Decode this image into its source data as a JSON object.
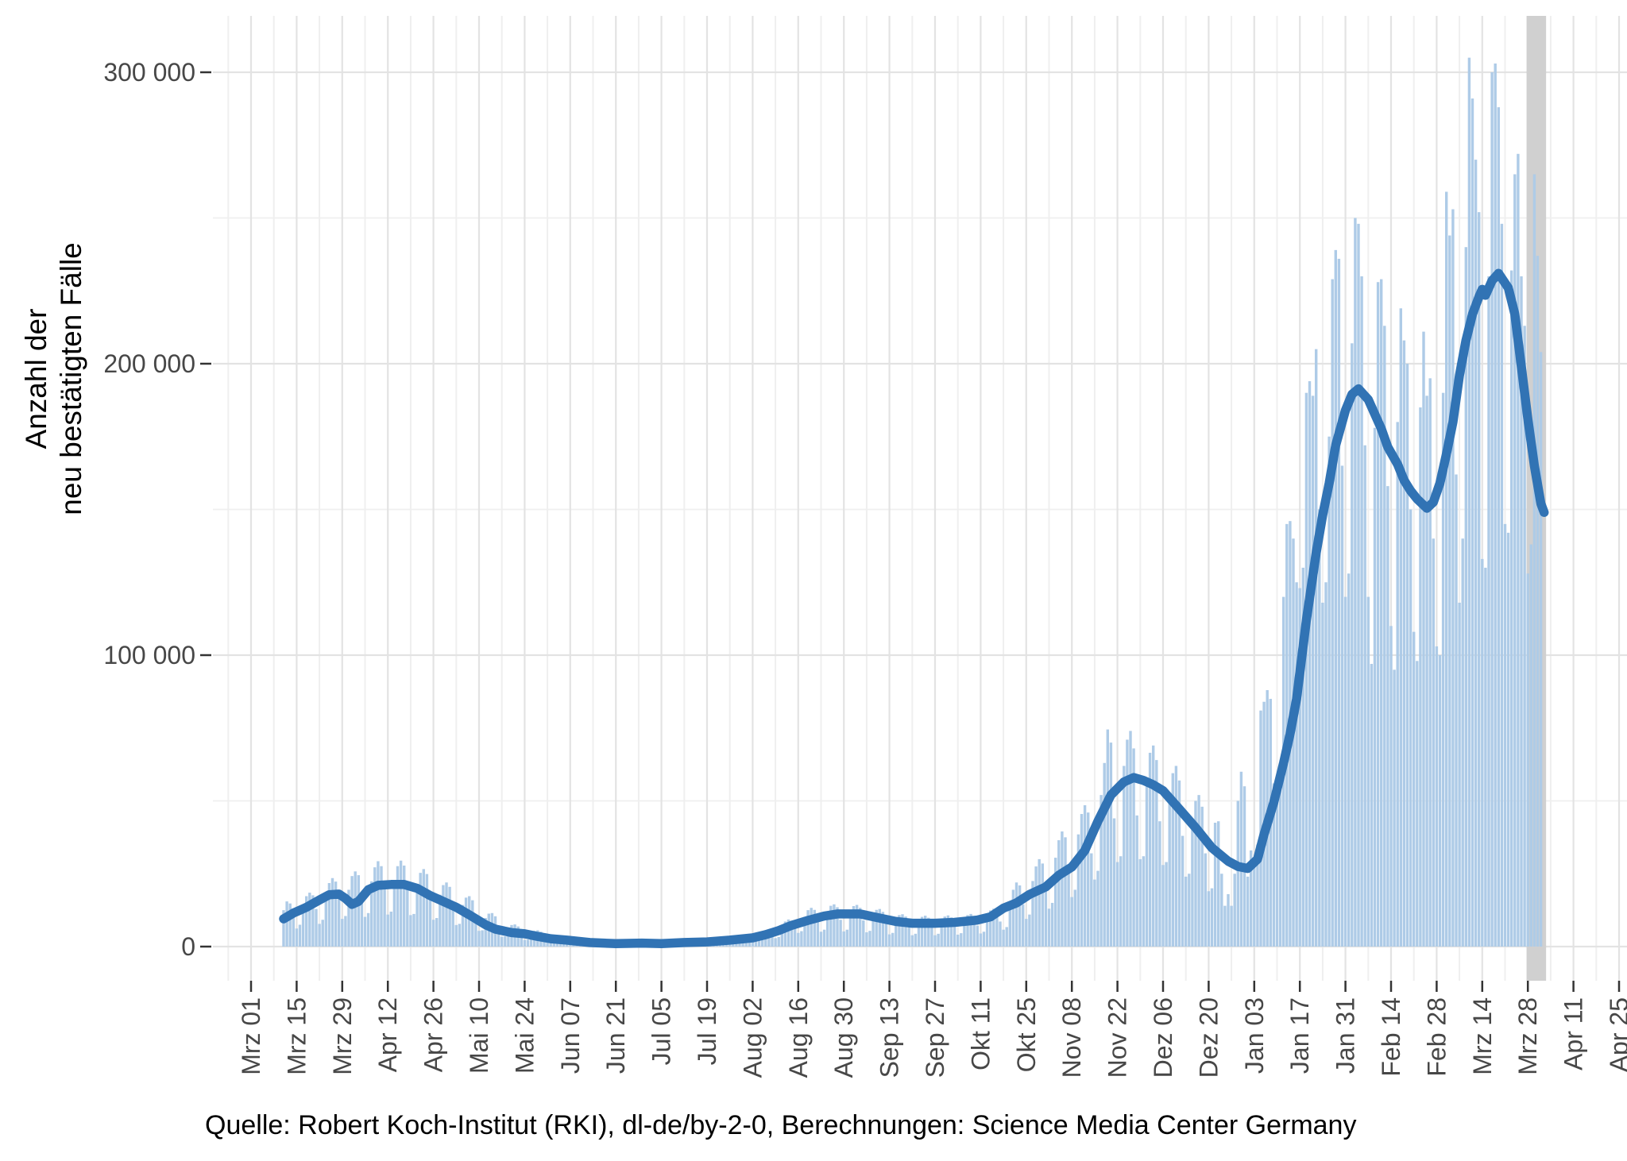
{
  "chart": {
    "y_axis_title_line1": "Anzahl der",
    "y_axis_title_line2": "neu bestätigten Fälle",
    "caption": "Quelle: Robert Koch-Institut (RKI), dl-de/by-2-0, Berechnungen: Science Media Center Germany",
    "y_tick_labels": [
      "0",
      "100 000",
      "200 000",
      "300 000"
    ],
    "x_tick_labels": [
      "Mrz 01",
      "Mrz 15",
      "Mrz 29",
      "Apr 12",
      "Apr 26",
      "Mai 10",
      "Mai 24",
      "Jun 07",
      "Jun 21",
      "Jul 05",
      "Jul 19",
      "Aug 02",
      "Aug 16",
      "Aug 30",
      "Sep 13",
      "Sep 27",
      "Okt 11",
      "Okt 25",
      "Nov 08",
      "Nov 22",
      "Dez 06",
      "Dez 20",
      "Jan 03",
      "Jan 17",
      "Jan 31",
      "Feb 14",
      "Feb 28",
      "Mrz 14",
      "Mrz 28",
      "Apr 11",
      "Apr 25"
    ]
  },
  "chart_data": {
    "type": "bar",
    "title": "",
    "xlabel": "",
    "ylabel": "Anzahl der neu bestätigten Fälle",
    "caption": "Quelle: Robert Koch-Institut (RKI), dl-de/by-2-0, Berechnungen: Science Media Center Germany",
    "x_unit": "days since 2020-03-01 (tick labels every 14 days, Mrz 01 2020 bis Apr 25 2021)",
    "ylim": [
      0,
      319000
    ],
    "grid": "major 100000 / minor 50000, vertical weekly",
    "legend": "none",
    "y_major_tick_values": [
      0,
      100000,
      200000,
      300000
    ],
    "y_minor_gridline_values": [
      50000,
      150000,
      250000
    ],
    "x_major_tick_step_days": 14,
    "x_minor_gridline_offset_days": 7,
    "x_axis_total_days": 420,
    "series": [
      {
        "name": "daily newly confirmed cases (bars)",
        "start_day": 10,
        "unit": "thousands of cases",
        "values_thousands": [
          12.5,
          15.5,
          14.8,
          10.8,
          6.2,
          7.5,
          14.2,
          17.3,
          18.5,
          17.6,
          12.9,
          7.8,
          9.2,
          17.9,
          21.8,
          23.5,
          22.3,
          16.4,
          9.5,
          10.5,
          19.5,
          24.2,
          25.8,
          24.5,
          17.8,
          10.2,
          11.5,
          22.4,
          27.2,
          29.3,
          27.6,
          19.6,
          11.0,
          12.0,
          22.8,
          27.6,
          29.5,
          27.8,
          19.8,
          10.8,
          11.2,
          21.0,
          25.3,
          26.6,
          24.9,
          17.3,
          9.2,
          9.8,
          17.8,
          21.1,
          22.0,
          20.5,
          14.0,
          7.4,
          7.8,
          14.3,
          16.8,
          17.3,
          15.9,
          10.6,
          5.4,
          5.6,
          9.8,
          11.3,
          11.5,
          10.4,
          6.8,
          3.4,
          3.5,
          6.4,
          7.4,
          7.6,
          6.9,
          4.5,
          2.3,
          2.4,
          4.6,
          5.4,
          5.6,
          5.1,
          3.3,
          1.6,
          1.7,
          3.2,
          3.8,
          3.9,
          3.5,
          2.3,
          1.2,
          1.2,
          2.3,
          2.7,
          2.8,
          2.5,
          1.6,
          0.8,
          0.8,
          1.5,
          1.8,
          1.9,
          1.7,
          1.1,
          0.6,
          0.6,
          1.1,
          1.3,
          1.4,
          1.3,
          0.9,
          0.6,
          0.7,
          1.3,
          1.6,
          1.7,
          1.6,
          1.1,
          0.5,
          0.6,
          1.1,
          1.4,
          1.5,
          1.4,
          0.9,
          0.7,
          0.8,
          1.6,
          1.9,
          2.0,
          1.9,
          1.3,
          0.8,
          0.9,
          1.8,
          2.2,
          2.3,
          2.1,
          1.4,
          1.1,
          1.3,
          2.6,
          3.2,
          3.4,
          3.2,
          2.2,
          1.6,
          1.9,
          3.9,
          4.9,
          5.3,
          5.0,
          3.5,
          2.9,
          3.3,
          6.9,
          8.6,
          9.3,
          8.9,
          6.3,
          4.7,
          5.3,
          10.2,
          12.5,
          13.3,
          12.6,
          8.8,
          5.1,
          5.8,
          11.8,
          14.0,
          14.5,
          13.5,
          9.2,
          5.2,
          5.8,
          11.9,
          13.9,
          14.3,
          13.3,
          9.0,
          4.9,
          5.4,
          10.8,
          12.6,
          12.9,
          11.9,
          8.0,
          4.2,
          4.7,
          9.3,
          10.8,
          11.1,
          10.3,
          7.0,
          3.9,
          4.4,
          8.7,
          10.2,
          10.6,
          9.9,
          6.7,
          3.9,
          4.4,
          8.8,
          10.3,
          10.7,
          10.0,
          6.8,
          4.1,
          4.6,
          9.2,
          10.8,
          11.2,
          10.5,
          7.2,
          4.5,
          5.1,
          10.4,
          12.4,
          13.0,
          12.4,
          8.6,
          5.8,
          6.7,
          15.5,
          19.5,
          22.0,
          21.0,
          14.5,
          9.5,
          11.0,
          22.5,
          27.5,
          30.0,
          28.5,
          20.0,
          13.0,
          15.0,
          30.5,
          36.5,
          39.5,
          37.5,
          26.0,
          17.0,
          19.5,
          38.5,
          45.5,
          48.5,
          46.0,
          32.0,
          23.0,
          26.0,
          52.0,
          63.0,
          74.5,
          70.0,
          44.0,
          29.0,
          31.0,
          62.0,
          71.0,
          74.0,
          68.0,
          45.0,
          30.0,
          31.0,
          58.0,
          66.5,
          69.0,
          64.0,
          43.0,
          28.0,
          29.0,
          52.0,
          59.5,
          62.0,
          57.0,
          38.0,
          24.0,
          25.0,
          44.0,
          50.0,
          52.0,
          48.0,
          32.0,
          19.0,
          20.0,
          42.5,
          43.0,
          25.0,
          14.0,
          18.0,
          14.0,
          25.0,
          50.0,
          60.0,
          55.0,
          24.0,
          33.0,
          28.0,
          35.0,
          81.0,
          84.0,
          88.0,
          85.0,
          56.0,
          55.0,
          62.0,
          120,
          145,
          146,
          140,
          125,
          123,
          130,
          190,
          194,
          189,
          205,
          150,
          118,
          125,
          175,
          229,
          239,
          236,
          165,
          120,
          128,
          207,
          250,
          248,
          230,
          172,
          120,
          97,
          178,
          228,
          229,
          213,
          158,
          110,
          95,
          180,
          219,
          208,
          200,
          150,
          108,
          98,
          185,
          211,
          189,
          195,
          140,
          103,
          100,
          190,
          259,
          244,
          253,
          162,
          118,
          140,
          240,
          305,
          291,
          270,
          252,
          133,
          130,
          230,
          300,
          303,
          288,
          248,
          145,
          142,
          232,
          265,
          272,
          230,
          213,
          128,
          138,
          265,
          237,
          204
        ]
      },
      {
        "name": "smoothed trend line (7-day mean)",
        "unit": "thousands of cases",
        "points_day_value_thousands": [
          [
            10,
            9.5
          ],
          [
            13,
            11.5
          ],
          [
            17,
            13.5
          ],
          [
            21,
            16
          ],
          [
            24,
            17.8
          ],
          [
            27,
            18
          ],
          [
            29,
            16.5
          ],
          [
            31,
            14.5
          ],
          [
            33,
            15.5
          ],
          [
            36,
            19.5
          ],
          [
            39,
            21
          ],
          [
            43,
            21.3
          ],
          [
            47,
            21.3
          ],
          [
            51,
            20
          ],
          [
            55,
            17.5
          ],
          [
            58,
            16
          ],
          [
            63,
            13.5
          ],
          [
            67,
            10.9
          ],
          [
            72,
            7.5
          ],
          [
            75,
            6
          ],
          [
            80,
            4.8
          ],
          [
            84,
            4.4
          ],
          [
            88,
            3.5
          ],
          [
            92,
            2.7
          ],
          [
            97,
            2.2
          ],
          [
            104,
            1.4
          ],
          [
            112,
            1.0
          ],
          [
            120,
            1.2
          ],
          [
            126,
            1.0
          ],
          [
            133,
            1.4
          ],
          [
            140,
            1.6
          ],
          [
            147,
            2.2
          ],
          [
            154,
            3.0
          ],
          [
            158,
            4.1
          ],
          [
            162,
            5.5
          ],
          [
            166,
            7.3
          ],
          [
            171,
            9.0
          ],
          [
            176,
            10.5
          ],
          [
            180,
            11.2
          ],
          [
            187,
            11.2
          ],
          [
            192,
            10.0
          ],
          [
            198,
            8.6
          ],
          [
            203,
            8.0
          ],
          [
            210,
            8.0
          ],
          [
            216,
            8.3
          ],
          [
            223,
            9.1
          ],
          [
            227,
            10.2
          ],
          [
            231,
            13.2
          ],
          [
            235,
            15.0
          ],
          [
            239,
            17.9
          ],
          [
            244,
            20.5
          ],
          [
            248,
            24.5
          ],
          [
            252,
            27.3
          ],
          [
            256,
            33
          ],
          [
            260,
            43
          ],
          [
            264,
            52
          ],
          [
            268,
            56.5
          ],
          [
            271,
            58
          ],
          [
            274,
            57
          ],
          [
            277,
            55.5
          ],
          [
            280,
            53.5
          ],
          [
            285,
            47.2
          ],
          [
            290,
            40.8
          ],
          [
            295,
            33.9
          ],
          [
            300,
            29.3
          ],
          [
            303,
            27.5
          ],
          [
            306,
            26.8
          ],
          [
            309,
            30
          ],
          [
            311,
            38.5
          ],
          [
            314,
            49.5
          ],
          [
            317,
            63
          ],
          [
            319,
            73
          ],
          [
            321,
            85
          ],
          [
            324,
            112
          ],
          [
            327,
            135
          ],
          [
            329,
            148
          ],
          [
            331,
            159
          ],
          [
            333,
            172
          ],
          [
            336,
            184
          ],
          [
            338,
            189.5
          ],
          [
            340,
            191.4
          ],
          [
            343,
            187.7
          ],
          [
            347,
            177.7
          ],
          [
            349,
            171.4
          ],
          [
            352,
            165.5
          ],
          [
            354,
            160
          ],
          [
            356,
            156.4
          ],
          [
            358,
            153.6
          ],
          [
            361,
            150.4
          ],
          [
            363,
            152.5
          ],
          [
            365,
            159
          ],
          [
            367,
            169
          ],
          [
            369,
            180
          ],
          [
            371,
            196
          ],
          [
            373,
            208
          ],
          [
            375,
            217
          ],
          [
            377,
            223
          ],
          [
            378,
            225.5
          ],
          [
            379,
            223.5
          ],
          [
            381,
            228.5
          ],
          [
            383,
            231
          ],
          [
            386,
            226
          ],
          [
            388,
            217
          ],
          [
            390,
            199
          ],
          [
            392,
            181
          ],
          [
            394,
            165
          ],
          [
            396,
            152
          ],
          [
            397,
            149
          ]
        ]
      }
    ],
    "incomplete_data_band_days": [
      391.6,
      397.6
    ],
    "colors": {
      "bar": "#aecbe7",
      "line": "#3173b4",
      "incomplete_band": "#d0d0d0",
      "grid_major": "#e3e3e3",
      "grid_minor": "#efefef",
      "tick": "#333333",
      "tick_label": "#474747",
      "text": "#000000",
      "background": "#ffffff"
    }
  }
}
